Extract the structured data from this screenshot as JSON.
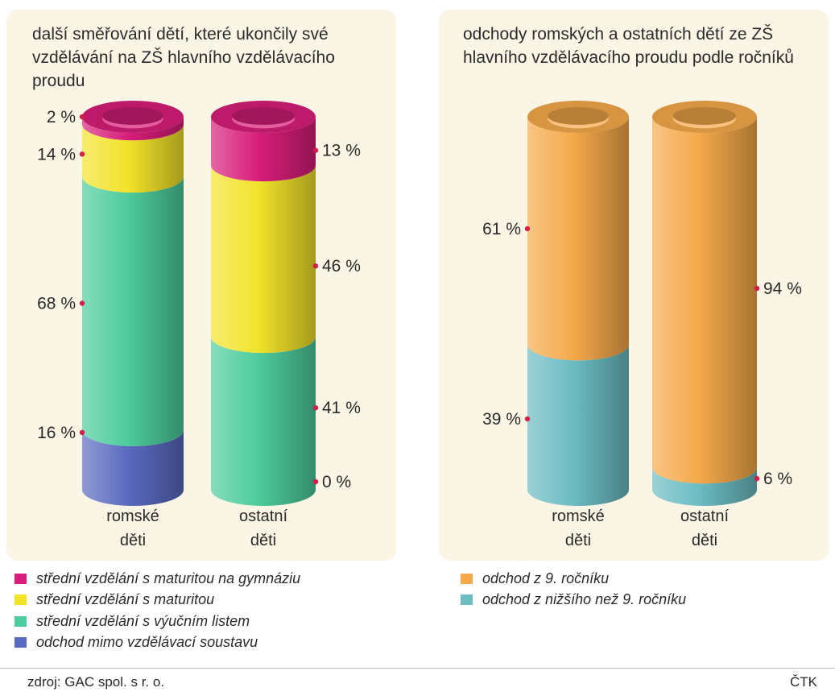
{
  "chart_data": [
    {
      "type": "bar",
      "stacked": true,
      "title": "další směřování dětí, které ukončily své vzdělávání na ZŠ hlavního vzdělávacího proudu",
      "categories": [
        "romské děti",
        "ostatní děti"
      ],
      "series": [
        {
          "name": "odchod mimo vzdělávací soustavu",
          "color": "#5a6ac0",
          "values": [
            16,
            0
          ],
          "labels": [
            "16 %",
            "0 %"
          ]
        },
        {
          "name": "střední vzdělání s výučním listem",
          "color": "#4dcc9d",
          "values": [
            68,
            41
          ],
          "labels": [
            "68 %",
            "41 %"
          ]
        },
        {
          "name": "střední vzdělání s maturitou",
          "color": "#f2e32a",
          "values": [
            14,
            46
          ],
          "labels": [
            "14 %",
            "46 %"
          ]
        },
        {
          "name": "střední vzdělání s maturitou na gymnáziu",
          "color": "#d81e7a",
          "values": [
            2,
            13
          ],
          "labels": [
            "2 %",
            "13 %"
          ]
        }
      ]
    },
    {
      "type": "bar",
      "stacked": true,
      "title": "odchody romských a ostatních dětí ze ZŠ hlavního vzdělávacího proudu podle ročníků",
      "categories": [
        "romské děti",
        "ostatní děti"
      ],
      "series": [
        {
          "name": "odchod z nižšího než 9. ročníku",
          "color": "#6bbcc3",
          "values": [
            39,
            6
          ],
          "labels": [
            "39 %",
            "6 %"
          ]
        },
        {
          "name": "odchod z 9. ročníku",
          "color": "#f5a94a",
          "values": [
            61,
            94
          ],
          "labels": [
            "61 %",
            "94 %"
          ]
        }
      ]
    }
  ],
  "category_labels": [
    {
      "line1": "romské",
      "line2": "děti"
    },
    {
      "line1": "ostatní",
      "line2": "děti"
    }
  ],
  "footer": {
    "source": "zdroj: GAC spol. s r. o.",
    "agency": "ČTK"
  }
}
